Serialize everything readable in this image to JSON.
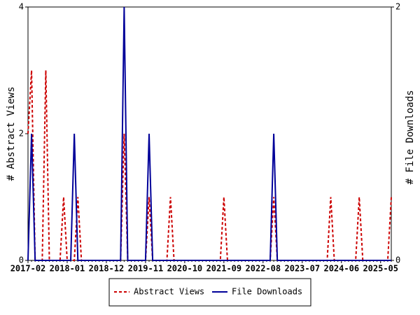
{
  "chart_data": {
    "type": "line",
    "y_label": "# Abstract Views",
    "y2_label": "# File Downloads",
    "categories": [
      "2017-02",
      null,
      null,
      null,
      null,
      null,
      null,
      null,
      null,
      null,
      null,
      "2018-01",
      null,
      null,
      null,
      null,
      null,
      null,
      null,
      null,
      null,
      null,
      "2018-12",
      null,
      null,
      null,
      null,
      null,
      null,
      null,
      null,
      null,
      null,
      "2019-11",
      null,
      null,
      null,
      null,
      null,
      null,
      null,
      null,
      null,
      null,
      "2020-10",
      null,
      null,
      null,
      null,
      null,
      null,
      null,
      null,
      null,
      null,
      "2021-09",
      null,
      null,
      null,
      null,
      null,
      null,
      null,
      null,
      null,
      null,
      "2022-08",
      null,
      null,
      null,
      null,
      null,
      null,
      null,
      null,
      null,
      null,
      "2023-07",
      null,
      null,
      null,
      null,
      null,
      null,
      null,
      null,
      null,
      null,
      "2024-06",
      null,
      null,
      null,
      null,
      null,
      null,
      null,
      null,
      null,
      null,
      "2025-05",
      null,
      null,
      null
    ],
    "series": [
      {
        "name": "Abstract Views",
        "color": "#cc0000",
        "dash": true,
        "values": [
          2,
          3,
          0,
          0,
          0,
          3,
          0,
          0,
          0,
          0,
          1,
          0,
          0,
          0,
          1,
          0,
          0,
          0,
          0,
          0,
          0,
          0,
          0,
          0,
          0,
          0,
          0,
          2,
          0,
          0,
          0,
          0,
          0,
          0,
          1,
          0,
          0,
          0,
          0,
          0,
          1,
          0,
          0,
          0,
          0,
          0,
          0,
          0,
          0,
          0,
          0,
          0,
          0,
          0,
          0,
          1,
          0,
          0,
          0,
          0,
          0,
          0,
          0,
          0,
          0,
          0,
          0,
          0,
          0,
          1,
          0,
          0,
          0,
          0,
          0,
          0,
          0,
          0,
          0,
          0,
          0,
          0,
          0,
          0,
          0,
          1,
          0,
          0,
          0,
          0,
          0,
          0,
          0,
          1,
          0,
          0,
          0,
          0,
          0,
          0,
          0,
          0,
          1
        ]
      },
      {
        "name": "File Downloads",
        "color": "#000099",
        "axis": "y2",
        "values": [
          0,
          1,
          0,
          0,
          0,
          0,
          0,
          0,
          0,
          0,
          0,
          0,
          0,
          1,
          0,
          0,
          0,
          0,
          0,
          0,
          0,
          0,
          0,
          0,
          0,
          0,
          0,
          2,
          0,
          0,
          0,
          0,
          0,
          0,
          1,
          0,
          0,
          0,
          0,
          0,
          0,
          0,
          0,
          0,
          0,
          0,
          0,
          0,
          0,
          0,
          0,
          0,
          0,
          0,
          0,
          0,
          0,
          0,
          0,
          0,
          0,
          0,
          0,
          0,
          0,
          0,
          0,
          0,
          0,
          1,
          0,
          0,
          0,
          0,
          0,
          0,
          0,
          0,
          0,
          0,
          0,
          0,
          0,
          0,
          0,
          0,
          0,
          0,
          0,
          0,
          0,
          0,
          0,
          0,
          0,
          0,
          0,
          0,
          0,
          0,
          0,
          0,
          0
        ]
      }
    ],
    "ylim": [
      0,
      4
    ],
    "yticks": [
      0,
      2,
      4
    ],
    "y2lim": [
      0,
      2
    ],
    "y2ticks": [
      0,
      2
    ],
    "legend": "bottom"
  }
}
